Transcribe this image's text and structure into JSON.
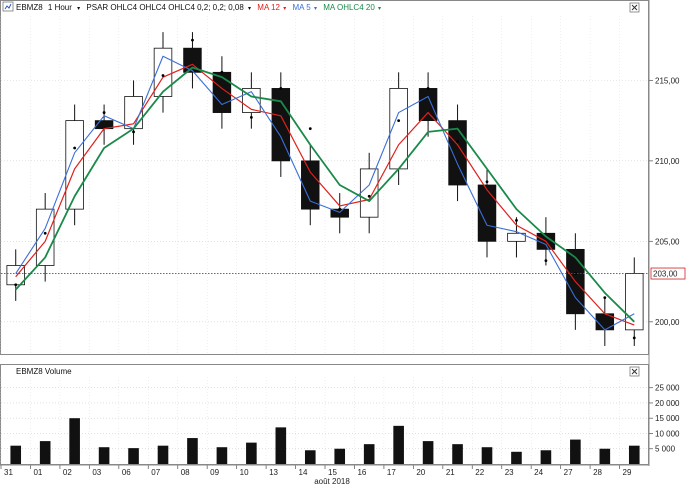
{
  "main_panel": {
    "symbol": "EBMZ8",
    "interval": "1 Hour",
    "indicators": [
      {
        "label": "PSAR OHLC4 OHLC4 OHLC4  0,2; 0,2; 0,08",
        "color": "#111111"
      },
      {
        "label": "MA 12",
        "color": "#e0201c"
      },
      {
        "label": "MA 5",
        "color": "#3a6fd8"
      },
      {
        "label": "MA OHLC4  20",
        "color": "#1a8a4a"
      }
    ],
    "current_price_label": "203,00",
    "y_tick_labels": [
      "215,00",
      "210,00",
      "205,00",
      "200,00"
    ]
  },
  "volume_panel": {
    "title": "EBMZ8 Volume",
    "y_tick_labels": [
      "25 000",
      "20 000",
      "15 000",
      "10 000",
      "5 000"
    ]
  },
  "x_axis": {
    "day_labels": [
      "31",
      "01",
      "02",
      "03",
      "06",
      "07",
      "08",
      "09",
      "10",
      "13",
      "14",
      "15",
      "16",
      "17",
      "20",
      "21",
      "22",
      "23",
      "24",
      "27",
      "28",
      "29"
    ],
    "month_label": "août 2018"
  },
  "icons": [
    "chart-type-icon",
    "dropdown-arrow-icon",
    "panel-close-icon"
  ],
  "colors": {
    "up_candle": "#ffffff",
    "down_candle": "#111111",
    "ma12": "#e0201c",
    "ma5": "#3a6fd8",
    "ma20": "#1a8a4a",
    "psar": "#000000",
    "price_line": "#d02020",
    "volume_bar": "#111111"
  },
  "chart_data": [
    {
      "type": "candlestick",
      "title": "EBMZ8 1 Hour",
      "ylim": [
        198,
        219
      ],
      "y_ticks": [
        200,
        205,
        210,
        215
      ],
      "current_price": 203.0,
      "x": [
        "31",
        "01",
        "02",
        "03",
        "06",
        "07",
        "08",
        "09",
        "10",
        "13",
        "14",
        "15",
        "16",
        "17",
        "20",
        "21",
        "22",
        "23",
        "24",
        "27",
        "28",
        "29"
      ],
      "series": [
        {
          "name": "EBMZ8",
          "values": [
            203.5,
            207.0,
            212.5,
            212.0,
            214.0,
            217.0,
            215.5,
            213.0,
            214.5,
            210.0,
            207.0,
            206.5,
            209.5,
            214.5,
            212.5,
            208.5,
            205.0,
            205.5,
            204.5,
            200.5,
            199.5,
            203.0
          ]
        },
        {
          "name": "PSAR OHLC4 OHLC4 OHLC4  0,2; 0,2; 0,08",
          "values": [
            202.3,
            205.5,
            210.8,
            213.0,
            211.8,
            215.3,
            217.5,
            215.5,
            212.7,
            214.5,
            212.0,
            207.0,
            207.8,
            212.5,
            214.5,
            211.2,
            208.7,
            206.3,
            203.8,
            203.0,
            201.5,
            199.0
          ]
        },
        {
          "name": "MA 12",
          "values": [
            202.8,
            205.0,
            209.5,
            212.0,
            212.3,
            215.2,
            216.0,
            214.5,
            213.2,
            212.8,
            209.3,
            207.2,
            207.6,
            211.0,
            213.0,
            211.0,
            208.2,
            206.0,
            205.0,
            202.5,
            200.5,
            199.8
          ]
        },
        {
          "name": "MA 5",
          "values": [
            203.0,
            205.8,
            210.5,
            212.8,
            212.0,
            216.5,
            215.6,
            213.5,
            214.3,
            211.5,
            207.5,
            206.8,
            208.5,
            213.0,
            214.0,
            209.8,
            206.0,
            205.6,
            204.8,
            201.5,
            199.5,
            200.5
          ]
        },
        {
          "name": "MA OHLC4  20",
          "values": [
            202.0,
            204.0,
            207.8,
            210.8,
            212.0,
            214.3,
            215.8,
            215.2,
            214.0,
            213.7,
            211.0,
            208.5,
            207.5,
            209.5,
            211.8,
            212.0,
            209.5,
            207.0,
            205.3,
            204.0,
            201.8,
            200.0
          ]
        }
      ]
    },
    {
      "type": "bar",
      "title": "EBMZ8 Volume",
      "ylim": [
        0,
        28500
      ],
      "y_ticks": [
        5000,
        10000,
        15000,
        20000,
        25000
      ],
      "categories": [
        "31",
        "01",
        "02",
        "03",
        "06",
        "07",
        "08",
        "09",
        "10",
        "13",
        "14",
        "15",
        "16",
        "17",
        "20",
        "21",
        "22",
        "23",
        "24",
        "27",
        "28",
        "29"
      ],
      "values": [
        6000,
        7500,
        15000,
        5500,
        5200,
        6000,
        8500,
        5500,
        7000,
        12000,
        4500,
        5000,
        6500,
        12500,
        7500,
        6500,
        5500,
        4000,
        4500,
        8000,
        5000,
        6000
      ]
    }
  ]
}
